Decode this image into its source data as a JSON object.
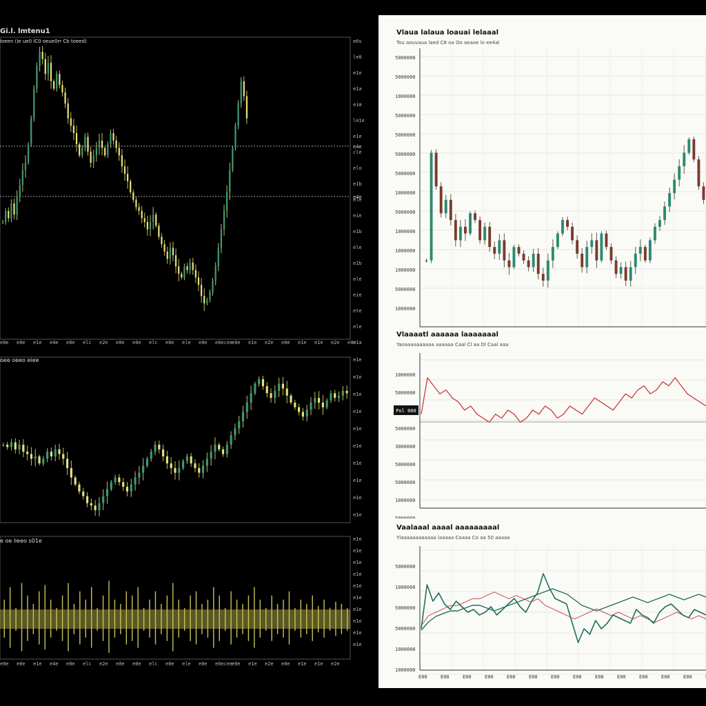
{
  "colors": {
    "dark_bg": "#000000",
    "light_bg": "#fafaf7",
    "candle_up": "#3a9a78",
    "candle_down": "#e6e07a",
    "wick_light": "#c8c060",
    "light_up": "#2a8a72",
    "light_down": "#7a3a2a",
    "red_line": "#cc3b3b",
    "teal_line": "#1f6f5f",
    "red_line_2": "#c84a4a"
  },
  "left": {
    "main": {
      "title": "Gi.l. lmtenu1",
      "subtitle": "Ioeen (ie ue0 lC0 oeue0rr Cb toeed)",
      "y_ticks": [
        "e6s",
        "le0",
        "e1e",
        "e1a",
        "eim",
        "le1e",
        "e1e",
        "cle",
        "elo",
        "e1b",
        "ele",
        "eie",
        "e1b",
        "ele",
        "e1b",
        "ele",
        "eie",
        "ete",
        "ele",
        "e1a"
      ],
      "hline_labels": [
        "e4e",
        "e4e"
      ],
      "x_ticks": [
        "e0e",
        "e0e",
        "e1e",
        "e4e",
        "e0e",
        "elc",
        "e2e",
        "e0e",
        "e0e",
        "elc",
        "e0e",
        "ele",
        "e0e",
        "e0ecee",
        "e0e",
        "e1e",
        "e2e",
        "e0e",
        "e1e",
        "e1e",
        "e2e",
        "e0e"
      ]
    },
    "middle": {
      "title": "oee oeeo eiee",
      "y_ticks": [
        "e1e",
        "e1e",
        "e1e",
        "e1e",
        "e1e",
        "e1e",
        "e1e",
        "e1e",
        "e1e",
        "e1e"
      ]
    },
    "bottom": {
      "title": "e oe lieeo s01e",
      "y_ticks": [
        "e1e",
        "e1e",
        "e1e",
        "e1e",
        "e1e",
        "e1e",
        "e1e",
        "e1e",
        "e1e",
        "e1e"
      ],
      "x_ticks": [
        "e0e",
        "e0e",
        "e1e",
        "e4e",
        "e0e",
        "elc",
        "e2e",
        "e0e",
        "e0e",
        "elc",
        "e0e",
        "ele",
        "e0e",
        "e0ecee",
        "e0e",
        "e1e",
        "e2e",
        "e0e",
        "e1e",
        "e1e",
        "e2e"
      ]
    }
  },
  "right": {
    "top": {
      "title": "Vlaua lalaua loauai lelaaal",
      "subtitle": "Tou aouvaua laed C8 oa Oo aeaoe lo ee4al",
      "y_ticks": [
        "5000000",
        "5000000",
        "1000000",
        "5000000",
        "5000000",
        "5000000",
        "5000000",
        "1000000",
        "5000000",
        "1000000",
        "1000000",
        "1000000",
        "5000000",
        "1000000"
      ]
    },
    "middle": {
      "title": "Vlaaaatl aaaaaa laaaaaaal",
      "subtitle": "Yaoaaaaaaaaaa aaaaaa Caal Cl aa Dl Caal aaa",
      "y_ticks": [
        "1000000",
        "5000000",
        "3000000",
        "5000000",
        "3000000",
        "5000000",
        "5000000",
        "1000000",
        "5000000",
        "1000000"
      ],
      "badge": "Pol 000"
    },
    "bottom": {
      "title": "Vaalaaal aaaal aaaaaaaaal",
      "subtitle": "Ylaaaaaaaaaaaa laaaaa Caaaa Co aa 50 aaaaa",
      "y_ticks": [
        "5000000",
        "1000000",
        "5000000",
        "5000000",
        "1000000",
        "1000000"
      ],
      "x_ticks": [
        "E00",
        "E00",
        "E00",
        "E00",
        "E00",
        "E00",
        "E00",
        "E00",
        "E00",
        "E00",
        "E00",
        "E00",
        "E00",
        "E00"
      ]
    }
  },
  "chart_data": [
    {
      "type": "line",
      "title": "Gi.l. lmtenu1",
      "description_series": "candlestick price",
      "series": [
        {
          "values": [
            42,
            45,
            43,
            47,
            44,
            49,
            52,
            56,
            58,
            63,
            70,
            78,
            84,
            88,
            86,
            82,
            85,
            80,
            78,
            82,
            79,
            77,
            74,
            70,
            68,
            66,
            63,
            60,
            62,
            65,
            61,
            58,
            60,
            62,
            64,
            62,
            60,
            63,
            66,
            64,
            62,
            60,
            57,
            55,
            53,
            50,
            48,
            46,
            45,
            43,
            42,
            40,
            42,
            44,
            41,
            38,
            36,
            34,
            32,
            35,
            33,
            30,
            28,
            27,
            30,
            29,
            31,
            29,
            27,
            25,
            22,
            20,
            21,
            23,
            26,
            30,
            35,
            40,
            45,
            50,
            56,
            62,
            68,
            74,
            80,
            76,
            70
          ]
        }
      ],
      "reference_lines": [
        "e4e",
        "e4e"
      ]
    },
    {
      "type": "line",
      "title": "oee oeeo eiee",
      "series": [
        {
          "values": [
            50,
            49,
            51,
            48,
            50,
            47,
            46,
            44,
            45,
            42,
            44,
            47,
            45,
            48,
            46,
            44,
            40,
            36,
            33,
            30,
            28,
            25,
            24,
            22,
            25,
            28,
            31,
            34,
            36,
            34,
            32,
            30,
            33,
            36,
            38,
            41,
            44,
            47,
            50,
            48,
            45,
            42,
            40,
            38,
            40,
            43,
            45,
            42,
            40,
            38,
            41,
            44,
            47,
            50,
            48,
            46,
            50,
            54,
            57,
            60,
            64,
            68,
            72,
            76,
            78,
            75,
            72,
            70,
            73,
            76,
            74,
            71,
            68,
            66,
            64,
            62,
            65,
            68,
            70,
            68,
            66,
            69,
            72,
            70,
            71,
            73,
            72
          ]
        }
      ]
    },
    {
      "type": "bar",
      "title": "e oe lieeo s01e",
      "series": [
        {
          "values": [
            0.5,
            0.8,
            0.3,
            0.9,
            0.6,
            0.4,
            0.7,
            0.85,
            0.5,
            0.3,
            0.6,
            0.9,
            0.4,
            0.7,
            0.5,
            0.8,
            0.3,
            0.6,
            0.95,
            0.5,
            0.4,
            0.7,
            0.6,
            0.8,
            0.3,
            0.5,
            0.7,
            0.4,
            0.6,
            0.9,
            0.5,
            0.3,
            0.6,
            0.7,
            0.4,
            0.5,
            0.8,
            0.6,
            0.3,
            0.7,
            0.5,
            0.4,
            0.6,
            0.8,
            0.5,
            0.3,
            0.6,
            0.4,
            0.5,
            0.7,
            0.3,
            0.5,
            0.4,
            0.6,
            0.35,
            0.5,
            0.3,
            0.45,
            0.4,
            0.3
          ]
        }
      ]
    },
    {
      "type": "line",
      "title": "Vlaua lalaua loauai lelaaal",
      "series": [
        {
          "values": [
            30,
            62,
            52,
            44,
            48,
            42,
            36,
            40,
            38,
            44,
            42,
            36,
            40,
            34,
            32,
            36,
            30,
            28,
            34,
            32,
            30,
            28,
            32,
            26,
            24,
            30,
            34,
            38,
            42,
            40,
            36,
            32,
            28,
            34,
            36,
            30,
            38,
            34,
            30,
            26,
            28,
            24,
            28,
            32,
            34,
            30,
            36,
            40,
            42,
            46,
            50,
            54,
            58,
            62,
            66,
            60,
            52,
            48
          ]
        }
      ]
    },
    {
      "type": "line",
      "title": "Vlaaaatl aaaaaa laaaaaaal",
      "series": [
        {
          "values": [
            70,
            88,
            84,
            80,
            82,
            78,
            76,
            72,
            74,
            70,
            68,
            66,
            70,
            68,
            72,
            70,
            66,
            68,
            72,
            70,
            74,
            72,
            68,
            70,
            74,
            72,
            70,
            74,
            78,
            76,
            74,
            72,
            76,
            80,
            78,
            82,
            84,
            80,
            82,
            86,
            84,
            88,
            84,
            80,
            78,
            76,
            74
          ]
        }
      ]
    },
    {
      "type": "line",
      "title": "Vaalaaal aaaal aaaaaaaaal",
      "series": [
        {
          "values": [
            30,
            62,
            50,
            56,
            48,
            44,
            50,
            46,
            42,
            44,
            40,
            42,
            46,
            40,
            44,
            48,
            52,
            46,
            42,
            50,
            56,
            70,
            60,
            52,
            50,
            48,
            34,
            20,
            30,
            26,
            36,
            30,
            34,
            40,
            38,
            36,
            34,
            44,
            40,
            38,
            34,
            42,
            46,
            48,
            44,
            40,
            38,
            44,
            42,
            40
          ]
        },
        {
          "values": [
            24,
            30,
            34,
            36,
            38,
            38,
            40,
            42,
            42,
            40,
            38,
            40,
            42,
            44,
            46,
            48,
            50,
            52,
            54,
            52,
            50,
            46,
            42,
            40,
            38,
            40,
            42,
            44,
            46,
            48,
            46,
            44,
            46,
            48,
            50,
            48,
            46,
            48,
            50,
            48
          ]
        },
        {
          "values": [
            40,
            46,
            48,
            50,
            52,
            52,
            54,
            56,
            56,
            58,
            60,
            58,
            56,
            58,
            56,
            54,
            56,
            52,
            50,
            48,
            46,
            44,
            46,
            48,
            50,
            48,
            46,
            48,
            46,
            44,
            46,
            44,
            42,
            44,
            46,
            48,
            46,
            44,
            46,
            44
          ]
        }
      ]
    }
  ]
}
